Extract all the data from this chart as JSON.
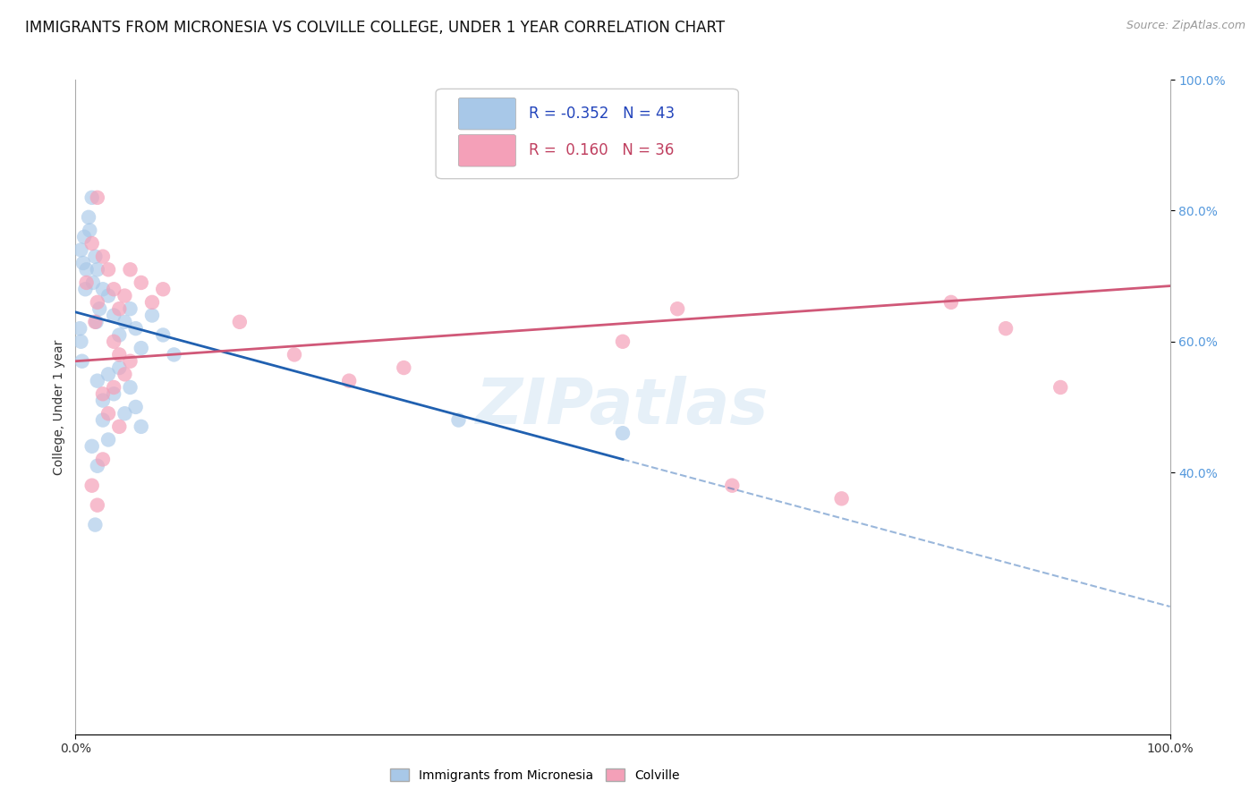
{
  "title": "IMMIGRANTS FROM MICRONESIA VS COLVILLE COLLEGE, UNDER 1 YEAR CORRELATION CHART",
  "source_text": "Source: ZipAtlas.com",
  "ylabel": "College, Under 1 year",
  "xlim": [
    0.0,
    100.0
  ],
  "ylim": [
    0.0,
    100.0
  ],
  "ytick_right_values": [
    40.0,
    60.0,
    80.0,
    100.0
  ],
  "legend_r_blue": "-0.352",
  "legend_n_blue": "43",
  "legend_r_pink": "0.160",
  "legend_n_pink": "36",
  "blue_color": "#A8C8E8",
  "pink_color": "#F4A0B8",
  "blue_line_color": "#2060B0",
  "pink_line_color": "#D05878",
  "background_color": "#FFFFFF",
  "grid_color": "#CCCCCC",
  "watermark_text": "ZIPatlas",
  "title_fontsize": 12,
  "axis_label_fontsize": 10,
  "tick_fontsize": 10,
  "legend_fontsize": 12,
  "blue_scatter": [
    [
      0.8,
      76
    ],
    [
      1.5,
      82
    ],
    [
      1.0,
      71
    ],
    [
      0.5,
      74
    ],
    [
      1.2,
      79
    ],
    [
      0.9,
      68
    ],
    [
      1.8,
      73
    ],
    [
      1.3,
      77
    ],
    [
      0.7,
      72
    ],
    [
      1.6,
      69
    ],
    [
      2.0,
      71
    ],
    [
      2.5,
      68
    ],
    [
      2.2,
      65
    ],
    [
      1.9,
      63
    ],
    [
      3.0,
      67
    ],
    [
      3.5,
      64
    ],
    [
      4.0,
      61
    ],
    [
      4.5,
      63
    ],
    [
      5.0,
      65
    ],
    [
      5.5,
      62
    ],
    [
      6.0,
      59
    ],
    [
      7.0,
      64
    ],
    [
      8.0,
      61
    ],
    [
      9.0,
      58
    ],
    [
      2.0,
      54
    ],
    [
      2.5,
      51
    ],
    [
      3.0,
      55
    ],
    [
      3.5,
      52
    ],
    [
      4.0,
      56
    ],
    [
      4.5,
      49
    ],
    [
      5.0,
      53
    ],
    [
      5.5,
      50
    ],
    [
      6.0,
      47
    ],
    [
      1.5,
      44
    ],
    [
      2.0,
      41
    ],
    [
      2.5,
      48
    ],
    [
      3.0,
      45
    ],
    [
      1.8,
      32
    ],
    [
      50.0,
      46
    ],
    [
      0.5,
      60
    ],
    [
      0.6,
      57
    ],
    [
      0.4,
      62
    ],
    [
      35.0,
      48
    ]
  ],
  "pink_scatter": [
    [
      2.0,
      82
    ],
    [
      1.5,
      75
    ],
    [
      2.5,
      73
    ],
    [
      3.0,
      71
    ],
    [
      3.5,
      68
    ],
    [
      1.0,
      69
    ],
    [
      4.0,
      65
    ],
    [
      2.0,
      66
    ],
    [
      1.8,
      63
    ],
    [
      4.5,
      67
    ],
    [
      5.0,
      71
    ],
    [
      6.0,
      69
    ],
    [
      7.0,
      66
    ],
    [
      8.0,
      68
    ],
    [
      3.5,
      60
    ],
    [
      4.0,
      58
    ],
    [
      4.5,
      55
    ],
    [
      5.0,
      57
    ],
    [
      2.5,
      52
    ],
    [
      3.0,
      49
    ],
    [
      3.5,
      53
    ],
    [
      4.0,
      47
    ],
    [
      1.5,
      38
    ],
    [
      2.0,
      35
    ],
    [
      2.5,
      42
    ],
    [
      15.0,
      63
    ],
    [
      20.0,
      58
    ],
    [
      25.0,
      54
    ],
    [
      30.0,
      56
    ],
    [
      50.0,
      60
    ],
    [
      55.0,
      65
    ],
    [
      60.0,
      38
    ],
    [
      70.0,
      36
    ],
    [
      80.0,
      66
    ],
    [
      85.0,
      62
    ],
    [
      90.0,
      53
    ]
  ],
  "blue_line_x0": 0.0,
  "blue_line_y0": 64.5,
  "blue_line_x1": 50.0,
  "blue_line_y1": 42.0,
  "blue_solid_end": 50.0,
  "pink_line_x0": 0.0,
  "pink_line_y0": 57.0,
  "pink_line_x1": 100.0,
  "pink_line_y1": 68.5
}
